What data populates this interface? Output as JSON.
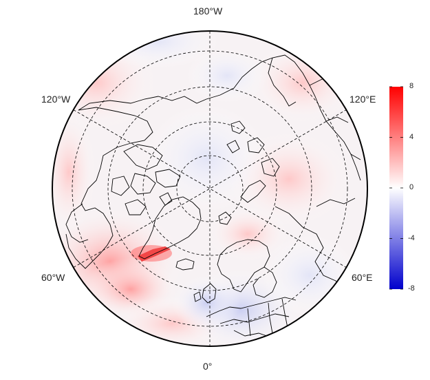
{
  "map": {
    "projection": "north-polar-stereographic",
    "longitude_labels": {
      "top": "180°W",
      "upper_left": "120°W",
      "upper_right": "120°E",
      "lower_left": "60°W",
      "lower_right": "60°E",
      "bottom": "0°"
    },
    "colorbar": {
      "min": -8,
      "max": 8,
      "ticks": [
        "8",
        "4",
        "0",
        "-4",
        "-8"
      ],
      "colors": {
        "high": "#ff0000",
        "mid": "#ffffff",
        "low": "#0000cc"
      }
    }
  }
}
